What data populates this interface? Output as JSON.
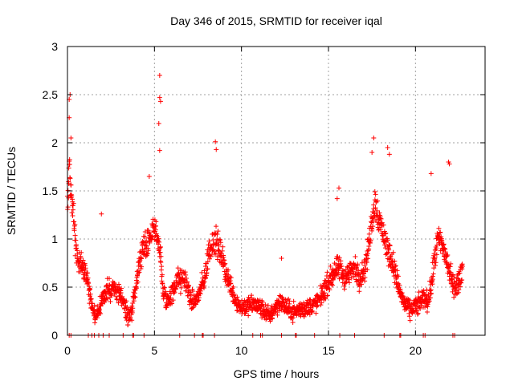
{
  "chart_data": {
    "type": "scatter",
    "title": "Day 346 of 2015, SRMTID for receiver iqal",
    "xlabel": "GPS time / hours",
    "ylabel": "SRMTID / TECUs",
    "xlim": [
      0,
      24
    ],
    "ylim": [
      0,
      3
    ],
    "x_ticks": [
      0,
      5,
      10,
      15,
      20
    ],
    "x_tick_labels": [
      "0",
      "5",
      "10",
      "15",
      "20"
    ],
    "y_ticks": [
      0,
      0.5,
      1,
      1.5,
      2,
      2.5,
      3
    ],
    "y_tick_labels": [
      "0",
      "0.5",
      "1",
      "1.5",
      "2",
      "2.5",
      "3"
    ],
    "grid": true,
    "marker": "+",
    "color": "#ff0000",
    "series": [
      {
        "name": "SRMTID",
        "trend": [
          [
            0.0,
            1.4
          ],
          [
            0.1,
            1.8
          ],
          [
            0.2,
            1.5
          ],
          [
            0.3,
            1.3
          ],
          [
            0.4,
            1.1
          ],
          [
            0.5,
            0.9
          ],
          [
            0.7,
            0.7
          ],
          [
            0.9,
            0.75
          ],
          [
            1.1,
            0.6
          ],
          [
            1.3,
            0.4
          ],
          [
            1.5,
            0.25
          ],
          [
            1.7,
            0.2
          ],
          [
            1.9,
            0.3
          ],
          [
            2.1,
            0.4
          ],
          [
            2.3,
            0.5
          ],
          [
            2.5,
            0.45
          ],
          [
            2.7,
            0.5
          ],
          [
            2.9,
            0.45
          ],
          [
            3.1,
            0.4
          ],
          [
            3.3,
            0.3
          ],
          [
            3.5,
            0.2
          ],
          [
            3.7,
            0.25
          ],
          [
            3.9,
            0.45
          ],
          [
            4.1,
            0.7
          ],
          [
            4.3,
            0.9
          ],
          [
            4.5,
            0.95
          ],
          [
            4.7,
            1.0
          ],
          [
            4.9,
            1.05
          ],
          [
            5.1,
            1.1
          ],
          [
            5.3,
            0.9
          ],
          [
            5.5,
            0.45
          ],
          [
            5.7,
            0.35
          ],
          [
            5.9,
            0.4
          ],
          [
            6.1,
            0.45
          ],
          [
            6.3,
            0.6
          ],
          [
            6.5,
            0.55
          ],
          [
            6.7,
            0.6
          ],
          [
            6.9,
            0.5
          ],
          [
            7.1,
            0.35
          ],
          [
            7.3,
            0.35
          ],
          [
            7.5,
            0.4
          ],
          [
            7.7,
            0.5
          ],
          [
            7.9,
            0.6
          ],
          [
            8.1,
            0.85
          ],
          [
            8.3,
            0.95
          ],
          [
            8.5,
            1.0
          ],
          [
            8.7,
            0.9
          ],
          [
            8.9,
            0.8
          ],
          [
            9.1,
            0.65
          ],
          [
            9.3,
            0.55
          ],
          [
            9.5,
            0.45
          ],
          [
            9.7,
            0.35
          ],
          [
            9.9,
            0.3
          ],
          [
            10.3,
            0.3
          ],
          [
            10.7,
            0.32
          ],
          [
            11.0,
            0.3
          ],
          [
            11.3,
            0.25
          ],
          [
            11.6,
            0.2
          ],
          [
            11.9,
            0.28
          ],
          [
            12.2,
            0.35
          ],
          [
            12.5,
            0.3
          ],
          [
            12.8,
            0.25
          ],
          [
            13.2,
            0.25
          ],
          [
            13.6,
            0.28
          ],
          [
            14.0,
            0.3
          ],
          [
            14.4,
            0.35
          ],
          [
            14.7,
            0.45
          ],
          [
            15.0,
            0.55
          ],
          [
            15.3,
            0.65
          ],
          [
            15.6,
            0.7
          ],
          [
            15.9,
            0.6
          ],
          [
            16.2,
            0.65
          ],
          [
            16.5,
            0.7
          ],
          [
            16.8,
            0.6
          ],
          [
            17.1,
            0.7
          ],
          [
            17.3,
            0.9
          ],
          [
            17.5,
            1.2
          ],
          [
            17.7,
            1.4
          ],
          [
            17.9,
            1.2
          ],
          [
            18.1,
            1.1
          ],
          [
            18.3,
            0.95
          ],
          [
            18.5,
            0.85
          ],
          [
            18.7,
            0.75
          ],
          [
            18.9,
            0.6
          ],
          [
            19.1,
            0.45
          ],
          [
            19.3,
            0.35
          ],
          [
            19.5,
            0.3
          ],
          [
            19.7,
            0.25
          ],
          [
            19.9,
            0.3
          ],
          [
            20.1,
            0.3
          ],
          [
            20.3,
            0.35
          ],
          [
            20.5,
            0.4
          ],
          [
            20.7,
            0.35
          ],
          [
            20.9,
            0.5
          ],
          [
            21.1,
            0.8
          ],
          [
            21.3,
            1.0
          ],
          [
            21.5,
            0.95
          ],
          [
            21.7,
            0.85
          ],
          [
            21.9,
            0.7
          ],
          [
            22.1,
            0.55
          ],
          [
            22.3,
            0.5
          ],
          [
            22.5,
            0.55
          ],
          [
            22.7,
            0.7
          ]
        ],
        "scatter_spread": 0.18,
        "outliers": [
          [
            0.1,
            2.45
          ],
          [
            0.15,
            2.5
          ],
          [
            0.1,
            2.26
          ],
          [
            0.2,
            2.05
          ],
          [
            1.95,
            1.26
          ],
          [
            4.7,
            1.65
          ],
          [
            5.3,
            2.7
          ],
          [
            5.35,
            2.43
          ],
          [
            5.3,
            2.47
          ],
          [
            5.25,
            2.2
          ],
          [
            5.3,
            1.92
          ],
          [
            8.5,
            2.01
          ],
          [
            8.55,
            1.93
          ],
          [
            17.6,
            2.05
          ],
          [
            17.5,
            1.9
          ],
          [
            18.4,
            1.95
          ],
          [
            18.5,
            1.88
          ],
          [
            20.9,
            1.68
          ],
          [
            21.9,
            1.8
          ],
          [
            21.95,
            1.78
          ],
          [
            15.6,
            1.53
          ],
          [
            15.5,
            1.42
          ],
          [
            12.3,
            0.8
          ]
        ],
        "zero_points": [
          0.1,
          0.2,
          1.2,
          1.4,
          1.55,
          1.8,
          2.05,
          2.4,
          3.2,
          3.75,
          3.8,
          4.4,
          6.45,
          7.3,
          7.75,
          7.8,
          8.45,
          10.65,
          11.1,
          11.2,
          12.3,
          13.1,
          13.15,
          14.2,
          15.65,
          16.5,
          18.2,
          19.1,
          19.15,
          20.45,
          20.55,
          22.15,
          22.25
        ]
      }
    ]
  }
}
